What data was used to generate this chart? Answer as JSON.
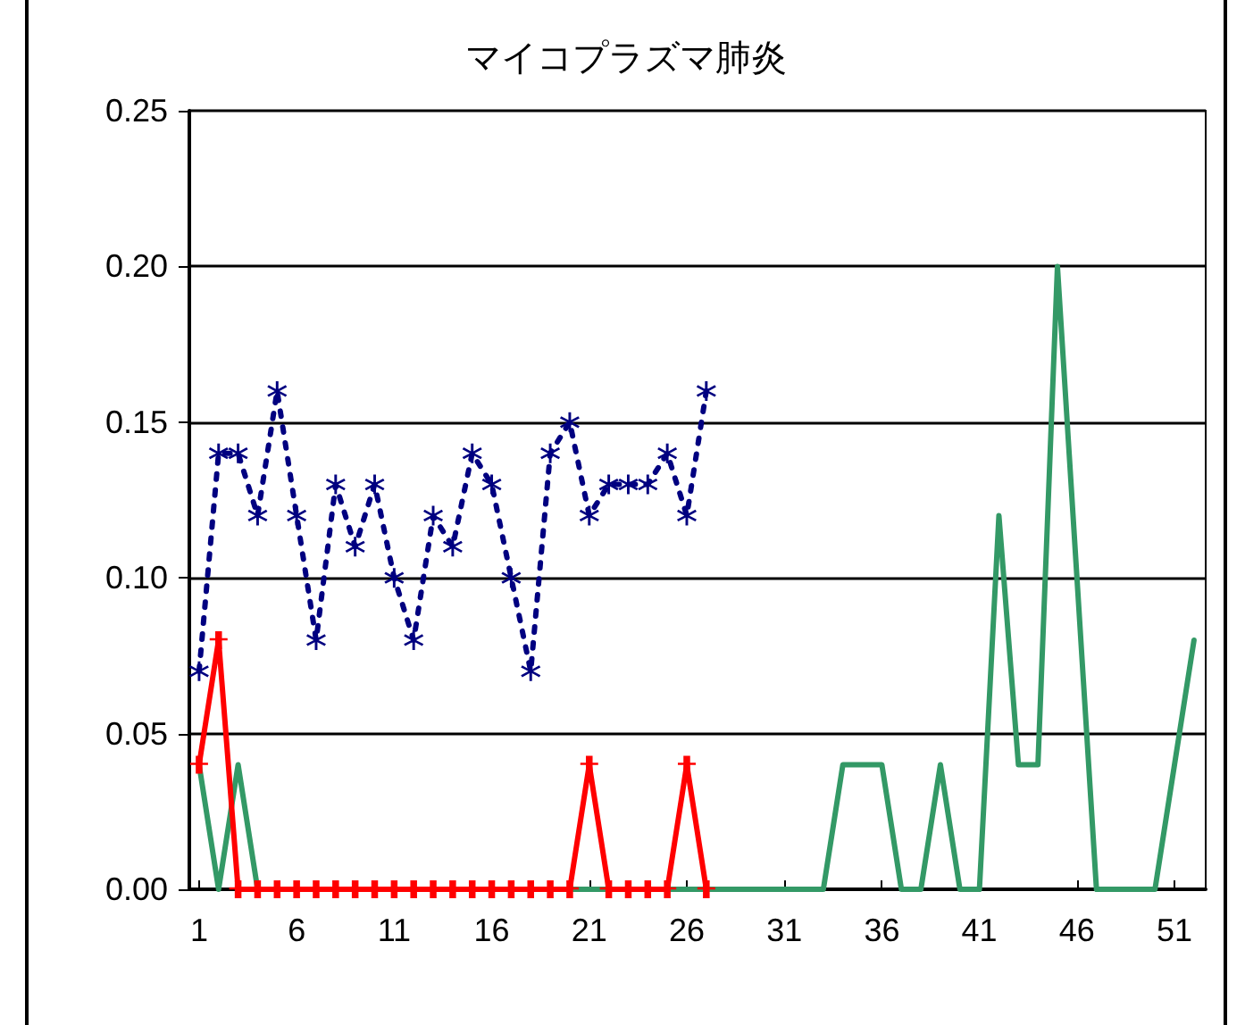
{
  "chart_data": {
    "type": "line",
    "title": "マイコプラズマ肺炎",
    "x": [
      1,
      2,
      3,
      4,
      5,
      6,
      7,
      8,
      9,
      10,
      11,
      12,
      13,
      14,
      15,
      16,
      17,
      18,
      19,
      20,
      21,
      22,
      23,
      24,
      25,
      26,
      27,
      28,
      29,
      30,
      31,
      32,
      33,
      34,
      35,
      36,
      37,
      38,
      39,
      40,
      41,
      42,
      43,
      44,
      45,
      46,
      47,
      48,
      49,
      50,
      51,
      52
    ],
    "series": [
      {
        "color": "#339966",
        "marker": "none",
        "line_style": "solid",
        "values": [
          0.04,
          0,
          0.04,
          0,
          0,
          0,
          0,
          0,
          0,
          0,
          0,
          0,
          0,
          0,
          0,
          0,
          0,
          0,
          0,
          0,
          0,
          0,
          0,
          0,
          0,
          0,
          0,
          0,
          0,
          0,
          0,
          0,
          0,
          0.04,
          0.04,
          0.04,
          0,
          0,
          0.04,
          0,
          0,
          0.12,
          0.04,
          0.04,
          0.2,
          0.1,
          0,
          0,
          0,
          0,
          0.04,
          0.08
        ]
      },
      {
        "color": "#ff0000",
        "x": [
          1,
          2,
          3,
          4,
          5,
          6,
          7,
          8,
          9,
          10,
          11,
          12,
          13,
          14,
          15,
          16,
          17,
          18,
          19,
          20,
          21,
          22,
          23,
          24,
          25,
          26,
          27
        ],
        "marker": "cross",
        "line_style": "solid",
        "values": [
          0.04,
          0.08,
          0,
          0,
          0,
          0,
          0,
          0,
          0,
          0,
          0,
          0,
          0,
          0,
          0,
          0,
          0,
          0,
          0,
          0,
          0.04,
          0,
          0,
          0,
          0,
          0.04,
          0
        ]
      },
      {
        "color": "#000080",
        "x": [
          1,
          2,
          3,
          4,
          5,
          6,
          7,
          8,
          9,
          10,
          11,
          12,
          13,
          14,
          15,
          16,
          17,
          18,
          19,
          20,
          21,
          22,
          23,
          24,
          25,
          26,
          27
        ],
        "marker": "star",
        "line_style": "dashed",
        "values": [
          0.07,
          0.14,
          0.14,
          0.12,
          0.16,
          0.12,
          0.08,
          0.13,
          0.11,
          0.13,
          0.1,
          0.08,
          0.12,
          0.11,
          0.14,
          0.13,
          0.1,
          0.07,
          0.14,
          0.15,
          0.12,
          0.13,
          0.13,
          0.13,
          0.14,
          0.12,
          0.16
        ]
      }
    ],
    "xlim": [
      0.5,
      52.6
    ],
    "xticks": [
      1,
      6,
      11,
      16,
      21,
      26,
      31,
      36,
      41,
      46,
      51
    ],
    "ylim": [
      0,
      0.25
    ],
    "yticks": [
      {
        "value": 0,
        "label": "0.00"
      },
      {
        "value": 0.05,
        "label": "0.05"
      },
      {
        "value": 0.1,
        "label": "0.10"
      },
      {
        "value": 0.15,
        "label": "0.15"
      },
      {
        "value": 0.2,
        "label": "0.20"
      },
      {
        "value": 0.25,
        "label": "0.25"
      }
    ],
    "grid": "y"
  }
}
